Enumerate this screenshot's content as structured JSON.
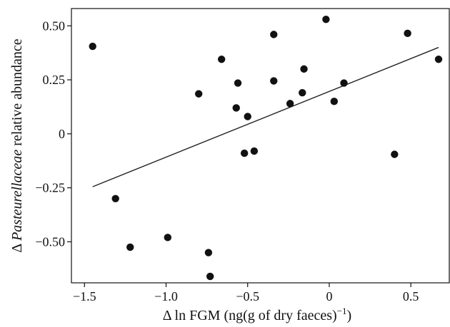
{
  "chart_data": {
    "type": "scatter",
    "xlabel": "Δ ln FGM (ng(g of dry faeces)",
    "xlabel_sup": "−1",
    "xlabel_tail": ")",
    "ylabel_pre": "Δ ",
    "ylabel_italic": "Pasteurellaceae",
    "ylabel_post": " relative abundance",
    "xlim": [
      -1.58,
      0.74
    ],
    "ylim": [
      -0.69,
      0.58
    ],
    "x_ticks": [
      -1.5,
      -1.0,
      -0.5,
      0,
      0.5
    ],
    "x_tick_labels": [
      "−1.5",
      "−1.0",
      "−0.5",
      "0",
      "0.5"
    ],
    "y_ticks": [
      -0.5,
      -0.25,
      0,
      0.25,
      0.5
    ],
    "y_tick_labels": [
      "−0.50",
      "−0.25",
      "0",
      "0.25",
      "0.50"
    ],
    "grid": false,
    "points": [
      {
        "x": -1.45,
        "y": 0.405
      },
      {
        "x": -1.31,
        "y": -0.3
      },
      {
        "x": -1.22,
        "y": -0.525
      },
      {
        "x": -0.99,
        "y": -0.48
      },
      {
        "x": -0.8,
        "y": 0.185
      },
      {
        "x": -0.74,
        "y": -0.55
      },
      {
        "x": -0.73,
        "y": -0.66
      },
      {
        "x": -0.66,
        "y": 0.345
      },
      {
        "x": -0.57,
        "y": 0.12
      },
      {
        "x": -0.56,
        "y": 0.235
      },
      {
        "x": -0.52,
        "y": -0.09
      },
      {
        "x": -0.5,
        "y": 0.08
      },
      {
        "x": -0.46,
        "y": -0.08
      },
      {
        "x": -0.34,
        "y": 0.46
      },
      {
        "x": -0.34,
        "y": 0.245
      },
      {
        "x": -0.24,
        "y": 0.14
      },
      {
        "x": -0.165,
        "y": 0.19
      },
      {
        "x": -0.155,
        "y": 0.3
      },
      {
        "x": -0.02,
        "y": 0.53
      },
      {
        "x": 0.03,
        "y": 0.15
      },
      {
        "x": 0.09,
        "y": 0.235
      },
      {
        "x": 0.4,
        "y": -0.095
      },
      {
        "x": 0.48,
        "y": 0.465
      },
      {
        "x": 0.67,
        "y": 0.345
      }
    ],
    "trend_line": {
      "x": [
        -1.45,
        0.67
      ],
      "y": [
        -0.245,
        0.4
      ]
    }
  }
}
